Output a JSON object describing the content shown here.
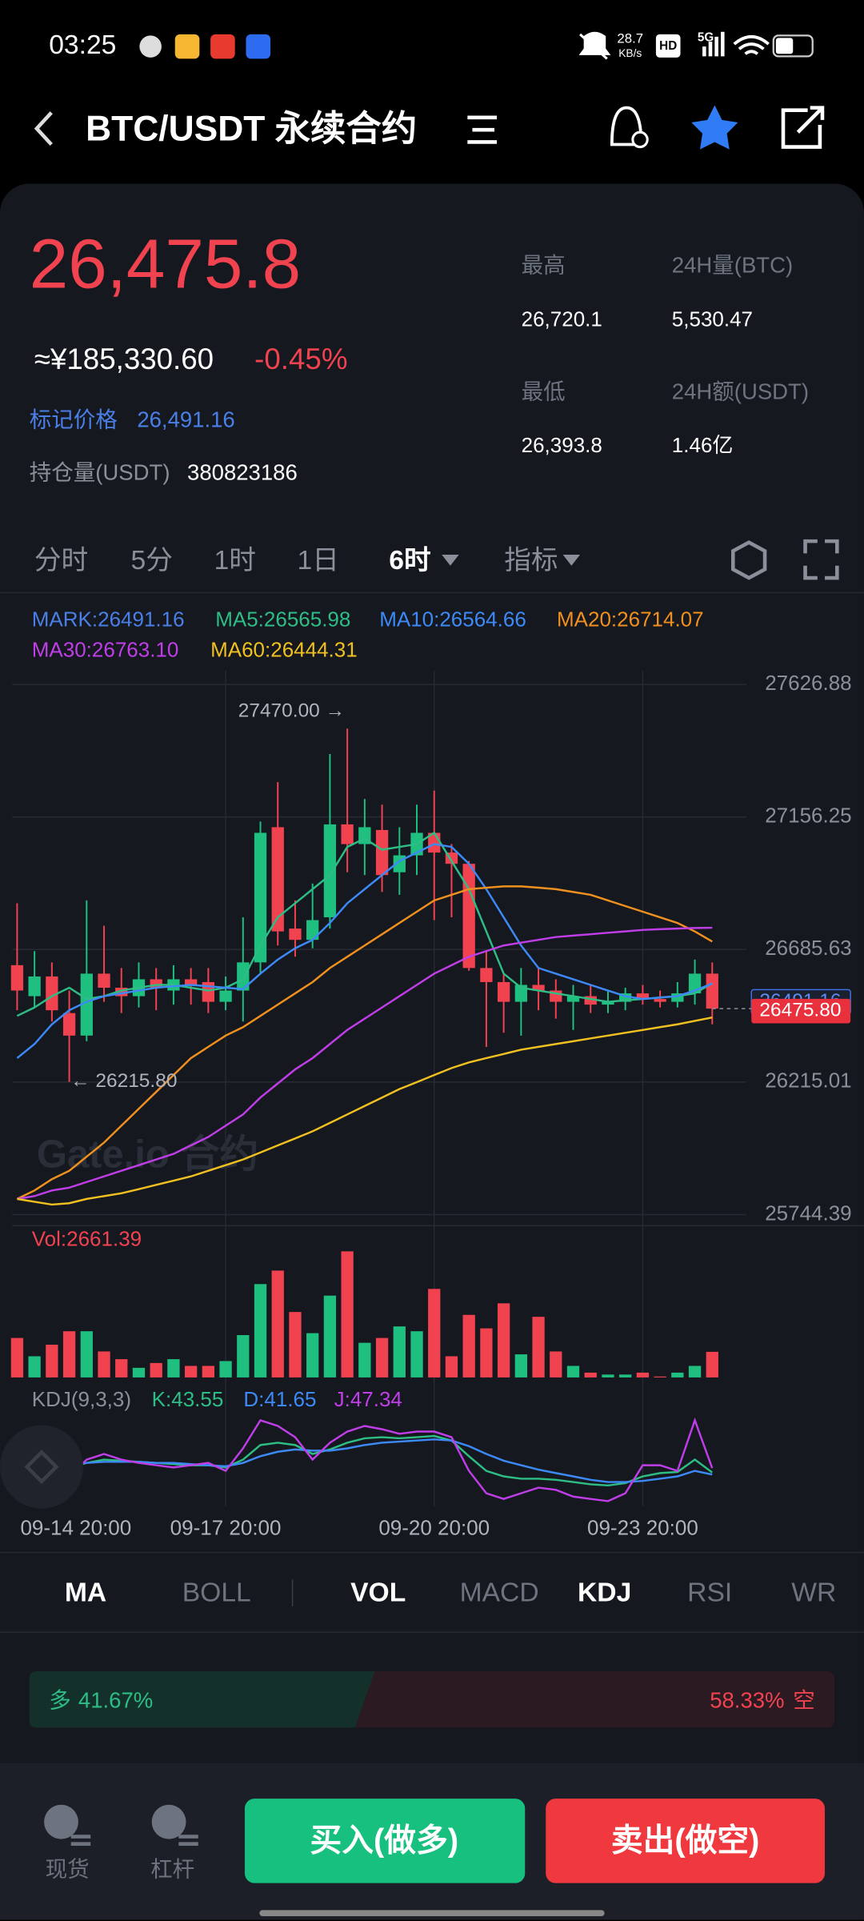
{
  "status_bar": {
    "time": "03:25",
    "net_speed": "28.7",
    "net_unit": "KB/s",
    "hd": "HD",
    "network": "5G"
  },
  "header": {
    "title": "BTC/USDT 永续合约"
  },
  "ticker": {
    "last_price": "26,475.8",
    "cny_price": "≈¥185,330.60",
    "change": "-0.45%",
    "mark_label": "标记价格",
    "mark_price": "26,491.16",
    "oi_label": "持仓量(USDT)",
    "oi": "380823186",
    "stats": [
      {
        "label": "最高",
        "value": "26,720.1"
      },
      {
        "label": "24H量(BTC)",
        "value": "5,530.47"
      },
      {
        "label": "最低",
        "value": "26,393.8"
      },
      {
        "label": "24H额(USDT)",
        "value": "1.46亿"
      }
    ]
  },
  "interval_tabs": [
    "分时",
    "5分",
    "1时",
    "1日",
    "6时",
    "指标"
  ],
  "chart_data": {
    "type": "candlestick",
    "mark_legend": "MARK:26491.16",
    "watermark": "Gate.io 合约",
    "up_color": "#1fbf80",
    "down_color": "#f0424f",
    "grid": true,
    "categories": [
      "09-14 20:00",
      null,
      null,
      null,
      null,
      null,
      null,
      null,
      null,
      null,
      null,
      null,
      "09-17 20:00",
      null,
      null,
      null,
      null,
      null,
      null,
      null,
      null,
      null,
      null,
      null,
      "09-20 20:00",
      null,
      null,
      null,
      null,
      null,
      null,
      null,
      null,
      null,
      null,
      null,
      "09-23 20:00",
      null,
      null,
      null,
      null
    ],
    "open": [
      26630,
      26520,
      26590,
      26460,
      26380,
      26600,
      26550,
      26520,
      26580,
      26540,
      26580,
      26570,
      26500,
      26540,
      26640,
      27120,
      26760,
      26720,
      26800,
      27130,
      27060,
      27110,
      26960,
      27020,
      27100,
      27030,
      26990,
      26620,
      26570,
      26500,
      26560,
      26540,
      26500,
      26520,
      26490,
      26500,
      26530,
      26510,
      26500,
      26530,
      26600
    ],
    "high": [
      26850,
      26680,
      26640,
      26540,
      26860,
      26770,
      26620,
      26640,
      26620,
      26630,
      26620,
      26620,
      26590,
      26800,
      27140,
      27280,
      26860,
      26920,
      27380,
      27470,
      27220,
      27200,
      27120,
      27200,
      27250,
      27060,
      27000,
      26680,
      26600,
      26620,
      26620,
      26580,
      26560,
      26560,
      26540,
      26550,
      26560,
      26540,
      26570,
      26650,
      26640
    ],
    "low": [
      26470,
      26480,
      26430,
      26215.8,
      26360,
      26500,
      26460,
      26480,
      26470,
      26490,
      26490,
      26460,
      26470,
      26430,
      26600,
      26700,
      26660,
      26690,
      26760,
      26960,
      26950,
      26890,
      26880,
      26950,
      26790,
      26800,
      26610,
      26340,
      26390,
      26380,
      26470,
      26440,
      26400,
      26460,
      26460,
      26470,
      26490,
      26480,
      26480,
      26490,
      26420
    ],
    "close": [
      26540,
      26590,
      26470,
      26380,
      26600,
      26550,
      26520,
      26580,
      26550,
      26580,
      26560,
      26500,
      26540,
      26640,
      27100,
      26750,
      26720,
      26790,
      27130,
      27060,
      27120,
      26950,
      27020,
      27100,
      27030,
      26990,
      26620,
      26570,
      26500,
      26560,
      26540,
      26500,
      26520,
      26490,
      26500,
      26530,
      26510,
      26500,
      26530,
      26600,
      26475.8
    ],
    "series": [
      {
        "name": "MA5:26565.98",
        "color": "#2ebd85",
        "values": [
          26450,
          26480,
          26520,
          26550,
          26510,
          26520,
          26540,
          26550,
          26560,
          26560,
          26550,
          26540,
          26550,
          26580,
          26700,
          26800,
          26850,
          26900,
          26950,
          27050,
          27080,
          27040,
          27050,
          27060,
          27100,
          27000,
          26900,
          26750,
          26600,
          26550,
          26540,
          26530,
          26520,
          26510,
          26500,
          26505,
          26510,
          26515,
          26520,
          26530,
          26565.98
        ]
      },
      {
        "name": "MA10:26564.66",
        "color": "#3d8af7",
        "values": [
          26300,
          26350,
          26420,
          26470,
          26500,
          26520,
          26530,
          26540,
          26550,
          26555,
          26560,
          26555,
          26550,
          26545,
          26600,
          26650,
          26690,
          26720,
          26780,
          26850,
          26900,
          26950,
          27000,
          27030,
          27060,
          27050,
          26990,
          26900,
          26800,
          26700,
          26620,
          26600,
          26580,
          26560,
          26540,
          26520,
          26510,
          26515,
          26520,
          26540,
          26564.66
        ]
      },
      {
        "name": "MA20:26714.07",
        "color": "#f0901f",
        "values": [
          25800,
          25830,
          25870,
          25900,
          25950,
          26000,
          26060,
          26120,
          26180,
          26240,
          26300,
          26340,
          26380,
          26410,
          26450,
          26490,
          26530,
          26570,
          26620,
          26660,
          26700,
          26740,
          26780,
          26820,
          26860,
          26880,
          26900,
          26905,
          26910,
          26910,
          26905,
          26900,
          26890,
          26880,
          26860,
          26840,
          26820,
          26800,
          26780,
          26750,
          26714.07
        ]
      },
      {
        "name": "MA30:26763.10",
        "color": "#c03ee8",
        "values": [
          25800,
          25810,
          25830,
          25840,
          25860,
          25880,
          25900,
          25920,
          25940,
          25960,
          25990,
          26020,
          26060,
          26100,
          26160,
          26210,
          26260,
          26300,
          26350,
          26400,
          26440,
          26480,
          26520,
          26560,
          26600,
          26630,
          26660,
          26680,
          26700,
          26710,
          26720,
          26730,
          26735,
          26740,
          26745,
          26750,
          26755,
          26758,
          26760,
          26762,
          26763.1
        ]
      },
      {
        "name": "MA60:26444.31",
        "color": "#f0c020",
        "values": [
          25800,
          25790,
          25780,
          25785,
          25800,
          25810,
          25820,
          25835,
          25850,
          25865,
          25880,
          25900,
          25920,
          25940,
          25965,
          25990,
          26015,
          26040,
          26070,
          26100,
          26130,
          26160,
          26190,
          26215,
          26240,
          26265,
          26285,
          26300,
          26315,
          26330,
          26340,
          26350,
          26360,
          26370,
          26380,
          26390,
          26400,
          26410,
          26420,
          26432,
          26444.31
        ]
      }
    ],
    "ylim": [
      25744.39,
      27626.88
    ],
    "yticks": [
      25744.39,
      26215.01,
      26685.63,
      27156.25,
      27626.88
    ],
    "annotations": [
      "27470.00 →",
      "← 26215.80"
    ],
    "price_tags": [
      {
        "value": 26491.16,
        "label": "26491.16"
      },
      {
        "value": 26475.8,
        "label": "26475.80"
      }
    ]
  },
  "volume": {
    "type": "bar",
    "title": "Vol:2661.39",
    "values": [
      4100,
      2200,
      3400,
      4800,
      4800,
      2700,
      1900,
      1000,
      1500,
      1900,
      1200,
      1200,
      1700,
      4400,
      9700,
      11100,
      6800,
      4600,
      8500,
      13100,
      3600,
      4100,
      5300,
      4800,
      9200,
      2200,
      6500,
      5100,
      7700,
      2400,
      6300,
      2700,
      1200,
      500,
      300,
      300,
      500,
      100,
      500,
      1200,
      2661.39
    ]
  },
  "kdj": {
    "type": "line",
    "title": "KDJ(9,3,3)",
    "series": [
      {
        "name": "K:43.55",
        "color": "#2ebd85",
        "values": [
          62,
          60,
          52,
          48,
          52,
          55,
          54,
          53,
          52,
          51,
          50,
          50,
          48,
          55,
          68,
          70,
          68,
          60,
          64,
          70,
          74,
          75,
          74,
          75,
          76,
          72,
          58,
          45,
          40,
          38,
          38,
          37,
          35,
          33,
          32,
          34,
          40,
          43,
          44,
          55,
          43.55
        ]
      },
      {
        "name": "D:41.65",
        "color": "#3d8af7",
        "values": [
          58,
          58,
          55,
          52,
          52,
          53,
          53,
          53,
          52,
          52,
          51,
          50,
          49,
          52,
          58,
          62,
          64,
          63,
          63,
          65,
          68,
          70,
          71,
          72,
          73,
          72,
          67,
          60,
          54,
          50,
          46,
          43,
          40,
          37,
          35,
          35,
          36,
          38,
          40,
          45,
          41.65
        ]
      },
      {
        "name": "J:47.34",
        "color": "#c03ee8",
        "values": [
          75,
          70,
          55,
          40,
          55,
          60,
          55,
          52,
          50,
          48,
          50,
          52,
          45,
          65,
          90,
          85,
          75,
          55,
          70,
          80,
          85,
          82,
          78,
          80,
          80,
          75,
          45,
          25,
          20,
          25,
          30,
          28,
          22,
          20,
          18,
          25,
          50,
          50,
          45,
          90,
          47.34
        ]
      }
    ]
  },
  "indicator_tabs": [
    "MA",
    "BOLL",
    "VOL",
    "MACD",
    "KDJ",
    "RSI",
    "WR"
  ],
  "sentiment": {
    "long": {
      "label": "多",
      "value": 41.67,
      "value_label": "41.67%"
    },
    "short": {
      "label": "空",
      "value": 58.33,
      "value_label": "58.33%"
    }
  },
  "bottom_nav": {
    "items": [
      "现货",
      "杠杆"
    ],
    "buy": "买入(做多)",
    "sell": "卖出(做空)"
  }
}
